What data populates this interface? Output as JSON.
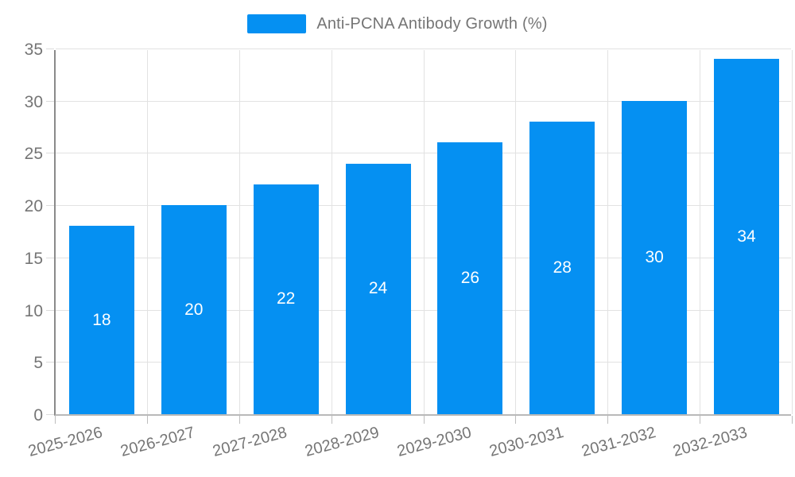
{
  "legend": {
    "label": "Anti-PCNA Antibody Growth (%)"
  },
  "chart_data": {
    "type": "bar",
    "title": "Anti-PCNA Antibody Growth (%)",
    "categories": [
      "2025-2026",
      "2026-2027",
      "2027-2028",
      "2028-2029",
      "2029-2030",
      "2030-2031",
      "2031-2032",
      "2032-2033"
    ],
    "values": [
      18,
      20,
      22,
      24,
      26,
      28,
      30,
      34
    ],
    "series_name": "Anti-PCNA Antibody Growth (%)",
    "xlabel": "",
    "ylabel": "",
    "ylim": [
      0,
      35
    ],
    "ytick_step": 5,
    "yticks": [
      0,
      5,
      10,
      15,
      20,
      25,
      30,
      35
    ],
    "grid": true,
    "legend_position": "top-center",
    "value_labels": "inside-center",
    "x_label_rotation_deg": -15
  },
  "colors": {
    "bar": "#0590F2",
    "value_label": "#ffffff",
    "axis_text": "#757575",
    "gridline": "#e2e2e2",
    "y_axis_line": "#8a8a8a",
    "x_axis_line": "#b9b9b9",
    "background": "#ffffff"
  }
}
